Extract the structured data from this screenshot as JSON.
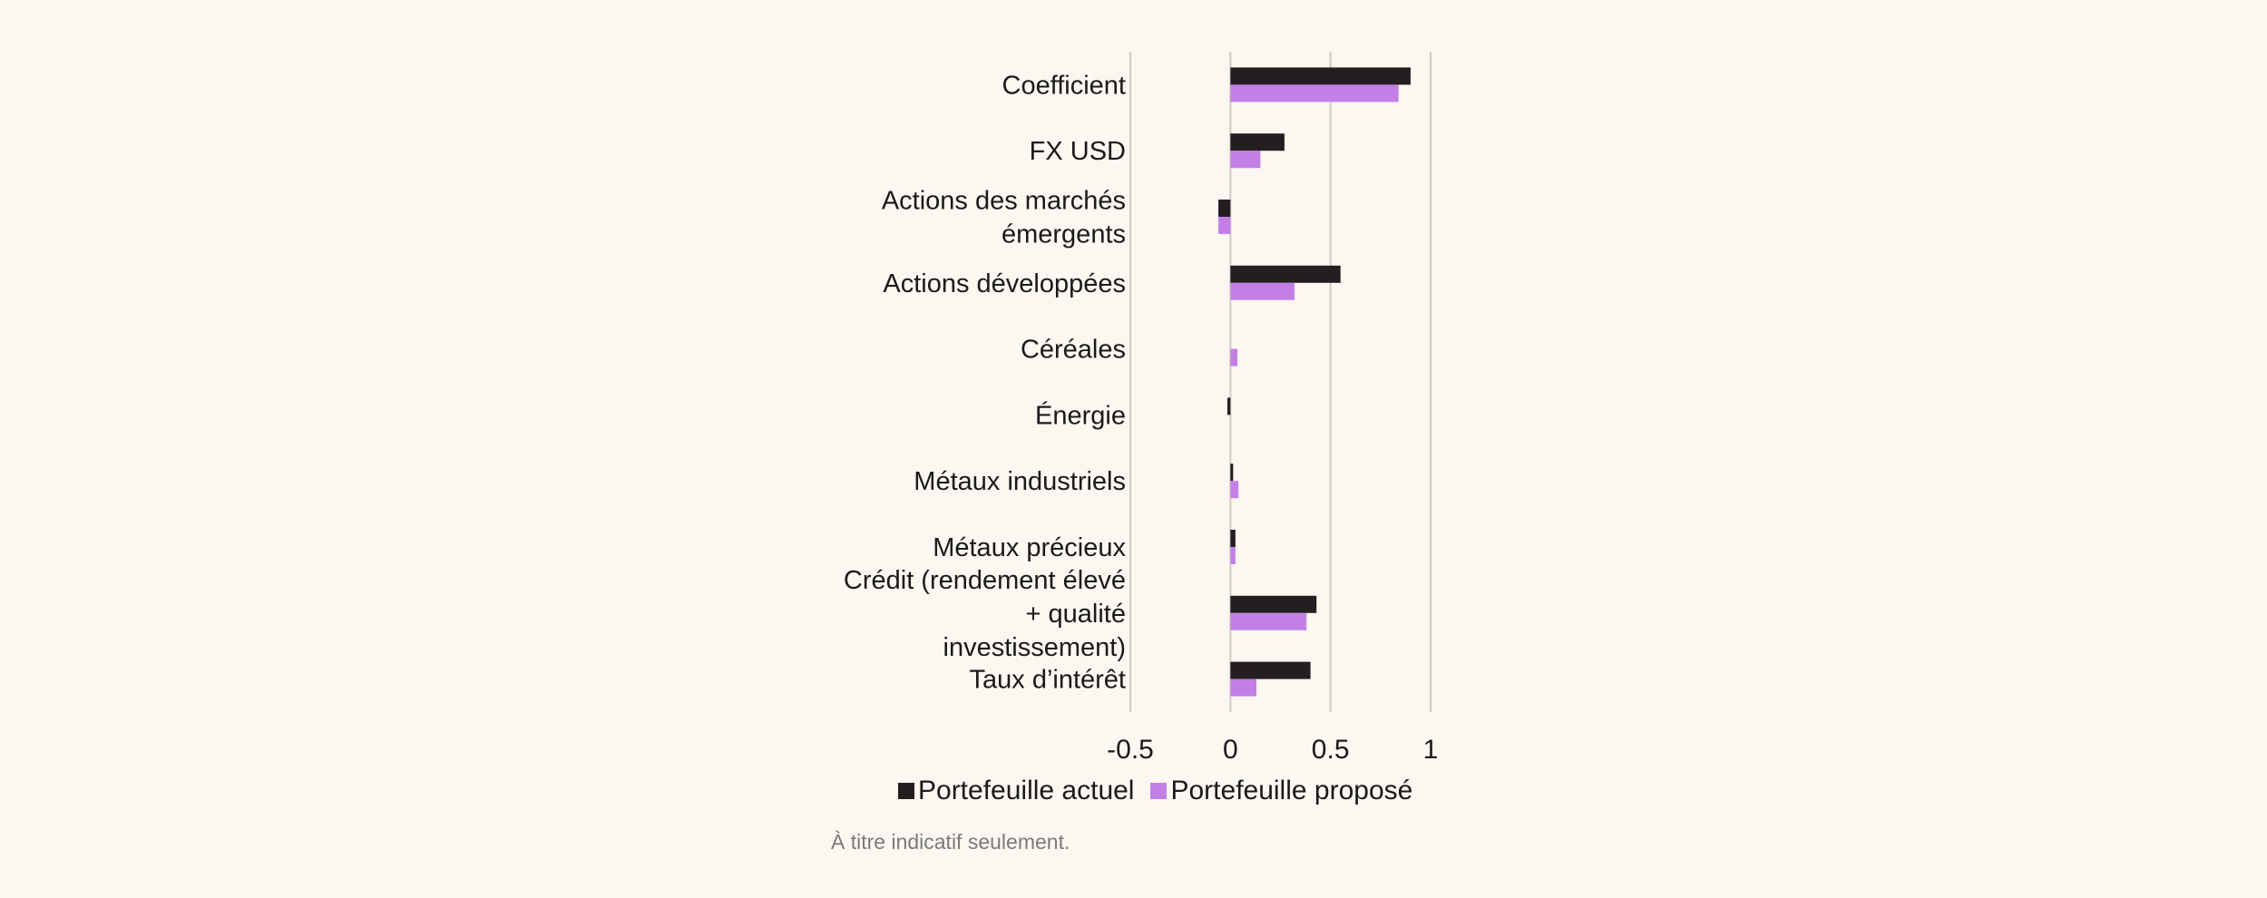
{
  "chart_data": {
    "type": "bar",
    "orientation": "horizontal",
    "categories": [
      [
        "Coefficient"
      ],
      [
        "FX USD"
      ],
      [
        "Actions des marchés",
        "émergents"
      ],
      [
        "Actions développées"
      ],
      [
        "Céréales"
      ],
      [
        "Énergie"
      ],
      [
        "Métaux industriels"
      ],
      [
        "Métaux précieux"
      ],
      [
        "Crédit (rendement élevé",
        "+ qualité",
        "investissement)"
      ],
      [
        "Taux d’intérêt"
      ]
    ],
    "series": [
      {
        "name": "Portefeuille actuel",
        "color": "#231f20",
        "values": [
          0.9,
          0.27,
          -0.06,
          0.55,
          0.0,
          -0.015,
          0.01,
          0.025,
          0.43,
          0.4
        ]
      },
      {
        "name": "Portefeuille proposé",
        "color": "#c47fe6",
        "values": [
          0.84,
          0.15,
          -0.06,
          0.32,
          0.035,
          0.0,
          0.04,
          0.025,
          0.38,
          0.13
        ]
      }
    ],
    "xlim": [
      -0.5,
      1
    ],
    "xticks": [
      "-0.5",
      "0",
      "0.5",
      "1"
    ],
    "xtick_values": [
      -0.5,
      0,
      0.5,
      1
    ],
    "grid": true,
    "legend_position": "bottom"
  },
  "footnote": "À titre indicatif seulement."
}
